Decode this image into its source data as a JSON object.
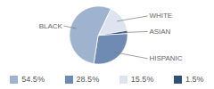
{
  "chart_data": {
    "type": "pie",
    "categories": [
      "BLACK",
      "HISPANIC",
      "WHITE",
      "ASIAN"
    ],
    "values": [
      54.5,
      28.5,
      15.5,
      1.5
    ],
    "value_labels": [
      "54.5%",
      "28.5%",
      "15.5%",
      "1.5%"
    ],
    "colors": [
      "#9fb3cf",
      "#6f8bb3",
      "#dde4ef",
      "#2f5077"
    ],
    "legend": "bottom"
  }
}
